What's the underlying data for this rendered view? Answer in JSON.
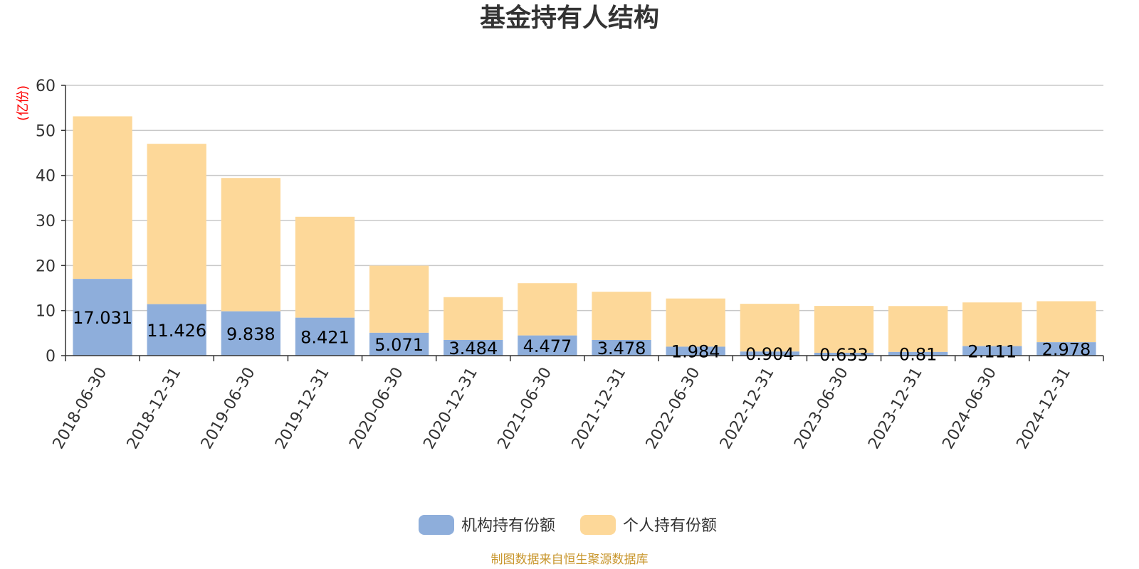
{
  "chart_data": {
    "type": "bar",
    "stacked": true,
    "title": "基金持有人结构",
    "unit_label": "(亿份)",
    "ylim": [
      0,
      60
    ],
    "yticks": [
      0,
      10,
      20,
      30,
      40,
      50,
      60
    ],
    "grid": true,
    "legend_position": "bottom",
    "categories": [
      "2018-06-30",
      "2018-12-31",
      "2019-06-30",
      "2019-12-31",
      "2020-06-30",
      "2020-12-31",
      "2021-06-30",
      "2021-12-31",
      "2022-06-30",
      "2022-12-31",
      "2023-06-30",
      "2023-12-31",
      "2024-06-30",
      "2024-12-31"
    ],
    "series": [
      {
        "name": "机构持有份额",
        "color": "#8eaedb",
        "values": [
          17.031,
          11.426,
          9.838,
          8.421,
          5.071,
          3.484,
          4.477,
          3.478,
          1.984,
          0.904,
          0.633,
          0.81,
          2.111,
          2.978
        ],
        "labels": [
          "17.031",
          "11.426",
          "9.838",
          "8.421",
          "5.071",
          "3.484",
          "4.477",
          "3.478",
          "1.984",
          "0.904",
          "0.633",
          "0.81",
          "2.111",
          "2.978"
        ]
      },
      {
        "name": "个人持有份额",
        "color": "#fdd899",
        "values": [
          36.1,
          35.6,
          29.6,
          22.4,
          14.9,
          9.5,
          11.6,
          10.7,
          10.7,
          10.6,
          10.4,
          10.2,
          9.7,
          9.1
        ]
      }
    ],
    "source": "制图数据来自恒生聚源数据库"
  }
}
